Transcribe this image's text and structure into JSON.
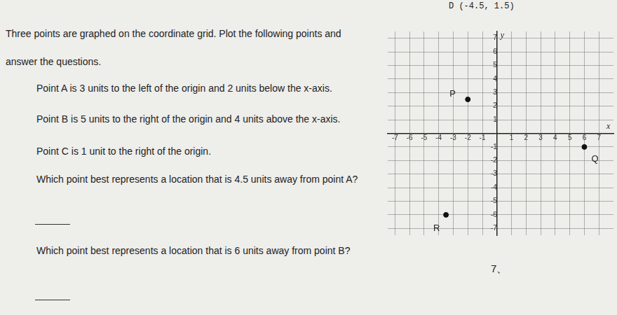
{
  "top_note": "D (-4.5, 1.5)",
  "intro": [
    "Three points are graphed on the coordinate grid. Plot the following points and",
    "answer the questions."
  ],
  "points_to_plot": [
    "Point A is 3 units to the left of the origin and 2 units below the x-axis.",
    "Point B is 5 units to the right of the origin and 4 units above the x-axis.",
    "Point C is 1 unit to the right of the origin."
  ],
  "questions": [
    "Which point best represents a location that is 4.5 units away from point A?",
    "Which point best represents a location that is 6 units away from point B?"
  ],
  "footer": "7、",
  "chart_data": {
    "type": "scatter",
    "x_label": "x",
    "y_label": "y",
    "xlim": [
      -7.5,
      8
    ],
    "ylim": [
      -7.5,
      7.5
    ],
    "xticks": [
      -7,
      -6,
      -5,
      -4,
      -3,
      -2,
      -1,
      1,
      2,
      3,
      4,
      5,
      6,
      7
    ],
    "yticks": [
      -7,
      -6,
      -5,
      -4,
      -3,
      -2,
      -1,
      1,
      2,
      3,
      4,
      5,
      6,
      7
    ],
    "grid": true,
    "color": "#111111",
    "marker": "circle",
    "series": [
      {
        "name": "P",
        "x": [
          -2
        ],
        "y": [
          2.5
        ]
      },
      {
        "name": "Q",
        "x": [
          6
        ],
        "y": [
          -1
        ]
      },
      {
        "name": "R",
        "x": [
          -3.5
        ],
        "y": [
          -6
        ]
      }
    ]
  }
}
